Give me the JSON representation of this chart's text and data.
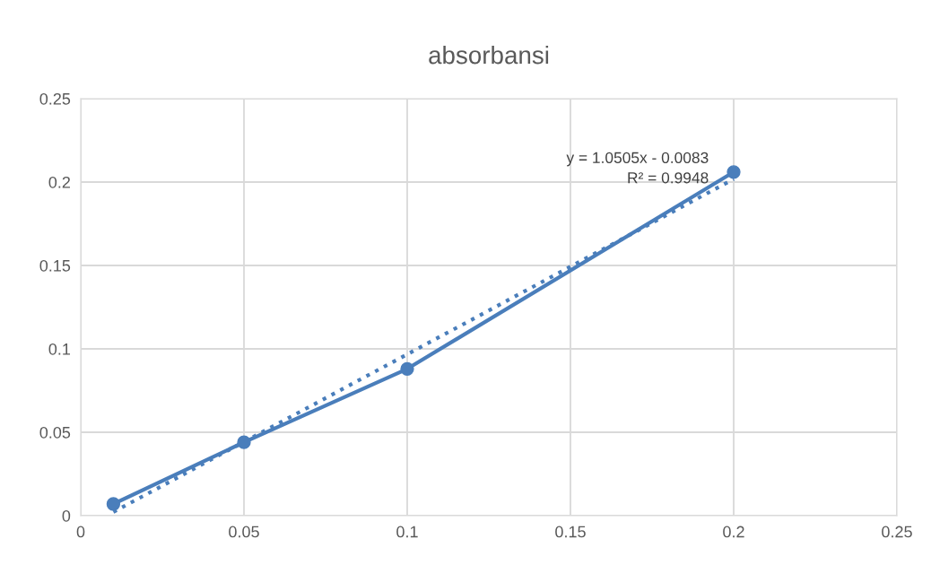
{
  "chart_data": {
    "type": "line",
    "title": "absorbansi",
    "x": [
      0.01,
      0.05,
      0.1,
      0.2
    ],
    "series": [
      {
        "color": "#4a7ebb",
        "values": [
          0.007,
          0.044,
          0.088,
          0.206
        ],
        "marker": "circle",
        "line_style": "solid"
      },
      {
        "color": "#4a7ebb",
        "x": [
          0.01,
          0.2
        ],
        "values": [
          0.0022,
          0.2018
        ],
        "marker": "none",
        "line_style": "dotted"
      }
    ],
    "annotations": [
      {
        "text": "y = 1.0505x - 0.0083\nR² = 0.9948",
        "x": 0.2,
        "y": 0.2018
      }
    ],
    "xlim": [
      0,
      0.25
    ],
    "xticks": [
      0,
      0.05,
      0.1,
      0.15,
      0.2,
      0.25
    ],
    "ylim": [
      0,
      0.25
    ],
    "yticks": [
      0,
      0.05,
      0.1,
      0.15,
      0.2,
      0.25
    ],
    "grid": true,
    "legend": false
  }
}
